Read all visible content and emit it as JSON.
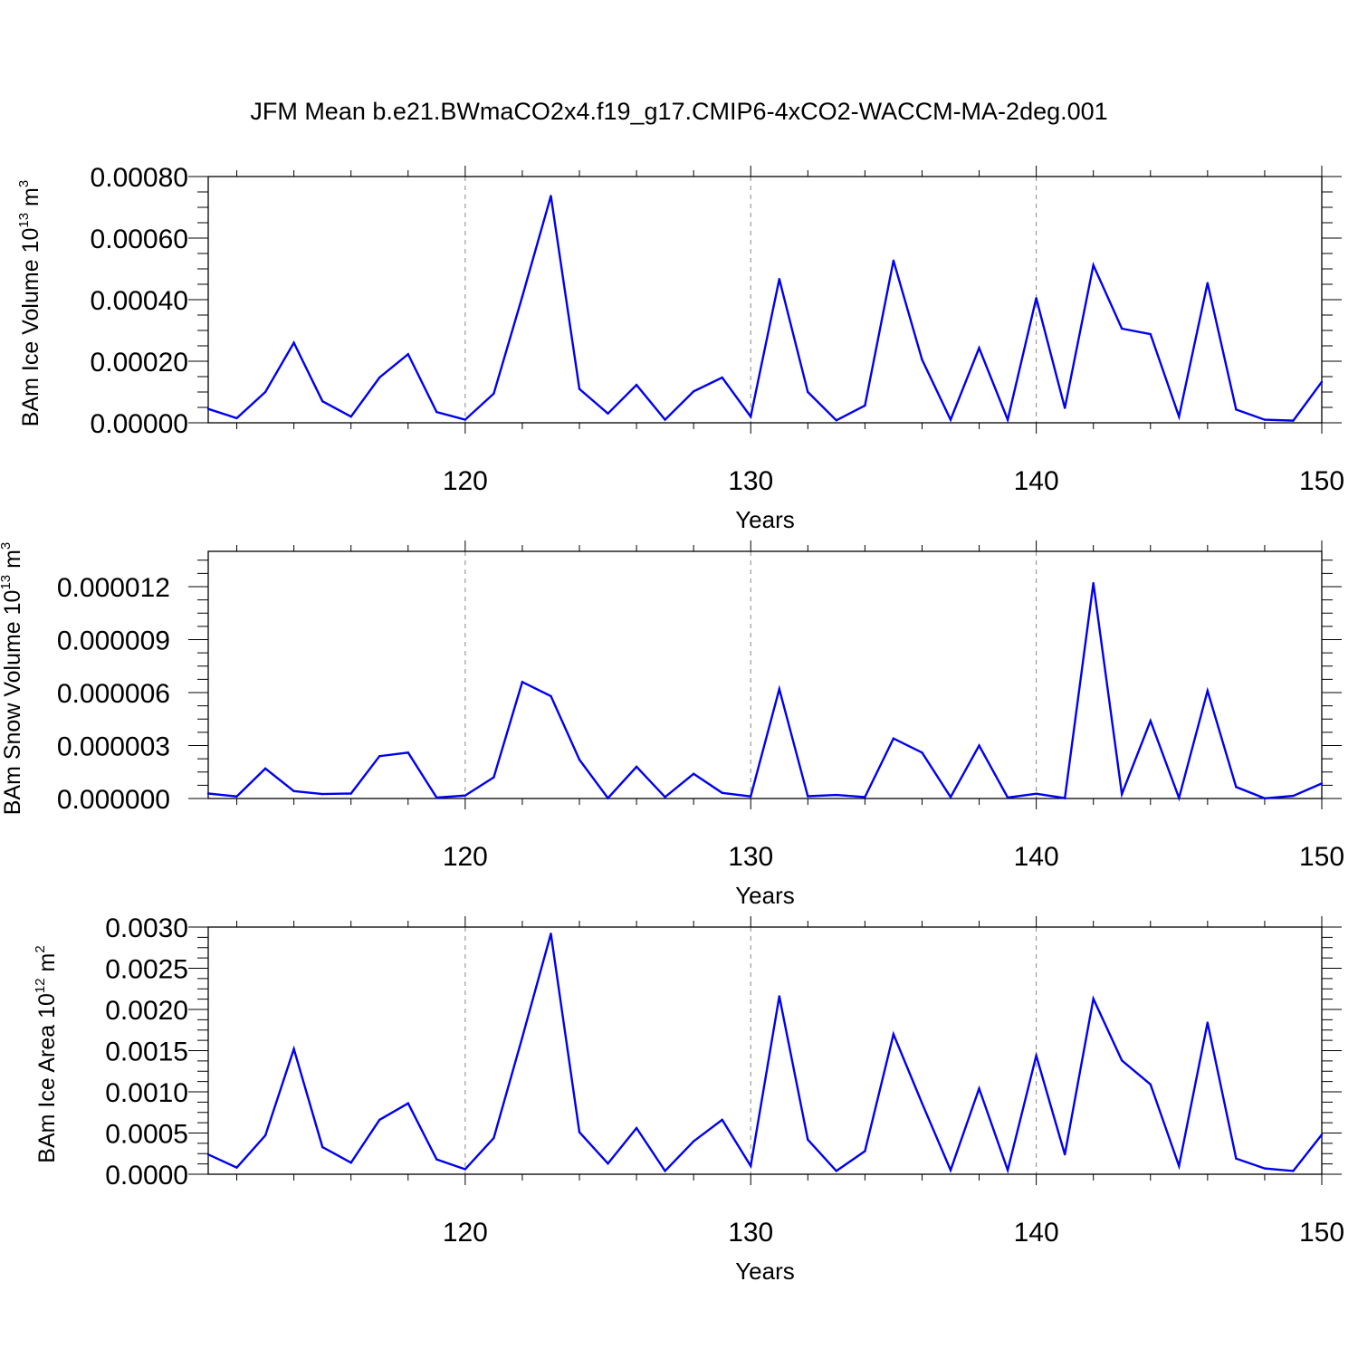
{
  "title": "JFM Mean b.e21.BWmaCO2x4.f19_g17.CMIP6-4xCO2-WACCM-MA-2deg.001",
  "colors": {
    "line": "#0000ee",
    "axes": "#000000",
    "grid": "#888888"
  },
  "chart_data": [
    {
      "type": "line",
      "ylabel": {
        "text": "BAm Ice Volume 10",
        "exp": "13",
        "unit": " m",
        "unit_exp": "3"
      },
      "xlabel": "Years",
      "xlim": [
        111,
        150
      ],
      "ylim": [
        0,
        0.0008
      ],
      "xticks": [
        "120",
        "130",
        "140",
        "150"
      ],
      "yticks": [
        "0.00000",
        "0.00020",
        "0.00040",
        "0.00060",
        "0.00080"
      ],
      "x": [
        111,
        112,
        113,
        114,
        115,
        116,
        117,
        118,
        119,
        120,
        121,
        122,
        123,
        124,
        125,
        126,
        127,
        128,
        129,
        130,
        131,
        132,
        133,
        134,
        135,
        136,
        137,
        138,
        139,
        140,
        141,
        142,
        143,
        144,
        145,
        146,
        147,
        148,
        149,
        150
      ],
      "series": [
        {
          "values": [
            4.5e-05,
            1.5e-05,
            0.0001,
            0.00026,
            7e-05,
            2e-05,
            0.000147,
            0.000223,
            3.5e-05,
            1e-05,
            9.5e-05,
            0.00041,
            0.000737,
            0.00011,
            3e-05,
            0.000123,
            1e-05,
            0.000102,
            0.000147,
            2e-05,
            0.000467,
            0.0001,
            8e-06,
            5.6e-05,
            0.000527,
            0.000205,
            1e-05,
            0.000243,
            1e-05,
            0.000405,
            4.8e-05,
            0.000512,
            0.000306,
            0.000288,
            2e-05,
            0.000454,
            4.3e-05,
            1e-05,
            7e-06,
            0.000133
          ]
        }
      ]
    },
    {
      "type": "line",
      "ylabel": {
        "text": "BAm Snow Volume 10",
        "exp": "13",
        "unit": " m",
        "unit_exp": "3"
      },
      "xlabel": "Years",
      "xlim": [
        111,
        150
      ],
      "ylim": [
        0,
        1.4e-05
      ],
      "xticks": [
        "120",
        "130",
        "140",
        "150"
      ],
      "yticks": [
        "0.000000",
        "0.000003",
        "0.000006",
        "0.000009",
        "0.000012"
      ],
      "x": [
        111,
        112,
        113,
        114,
        115,
        116,
        117,
        118,
        119,
        120,
        121,
        122,
        123,
        124,
        125,
        126,
        127,
        128,
        129,
        130,
        131,
        132,
        133,
        134,
        135,
        136,
        137,
        138,
        139,
        140,
        141,
        142,
        143,
        144,
        145,
        146,
        147,
        148,
        149,
        150
      ],
      "series": [
        {
          "values": [
            2.8e-07,
            1.2e-07,
            1.7e-06,
            4.2e-07,
            2.5e-07,
            2.8e-07,
            2.4e-06,
            2.6e-06,
            5e-08,
            1.7e-07,
            1.2e-06,
            6.6e-06,
            5.8e-06,
            2.2e-06,
            2e-08,
            1.8e-06,
            8e-08,
            1.4e-06,
            3.2e-07,
            1.2e-07,
            6.2e-06,
            1.3e-07,
            2e-07,
            8e-08,
            3.4e-06,
            2.6e-06,
            8e-08,
            3e-06,
            5e-08,
            2.7e-07,
            2e-08,
            1.22e-05,
            2.5e-07,
            4.4e-06,
            3e-08,
            6.1e-06,
            6.5e-07,
            1e-08,
            1.5e-07,
            8.5e-07
          ]
        }
      ]
    },
    {
      "type": "line",
      "ylabel": {
        "text": "BAm Ice Area 10",
        "exp": "12",
        "unit": " m",
        "unit_exp": "2"
      },
      "xlabel": "Years",
      "xlim": [
        111,
        150
      ],
      "ylim": [
        0,
        0.003
      ],
      "xticks": [
        "120",
        "130",
        "140",
        "150"
      ],
      "yticks": [
        "0.0000",
        "0.0005",
        "0.0010",
        "0.0015",
        "0.0020",
        "0.0025",
        "0.0030"
      ],
      "x": [
        111,
        112,
        113,
        114,
        115,
        116,
        117,
        118,
        119,
        120,
        121,
        122,
        123,
        124,
        125,
        126,
        127,
        128,
        129,
        130,
        131,
        132,
        133,
        134,
        135,
        136,
        137,
        138,
        139,
        140,
        141,
        142,
        143,
        144,
        145,
        146,
        147,
        148,
        149,
        150
      ],
      "series": [
        {
          "values": [
            0.00024,
            8e-05,
            0.00047,
            0.00152,
            0.00033,
            0.00014,
            0.00066,
            0.00086,
            0.00018,
            6e-05,
            0.00044,
            0.00166,
            0.00292,
            0.00051,
            0.00013,
            0.00056,
            4e-05,
            0.0004,
            0.00066,
            0.0001,
            0.00216,
            0.00042,
            4e-05,
            0.00028,
            0.0017,
            0.00086,
            5e-05,
            0.00104,
            5e-05,
            0.00144,
            0.00024,
            0.00213,
            0.00138,
            0.00109,
            0.0001,
            0.00184,
            0.00019,
            7e-05,
            4e-05,
            0.00048
          ]
        }
      ]
    }
  ]
}
